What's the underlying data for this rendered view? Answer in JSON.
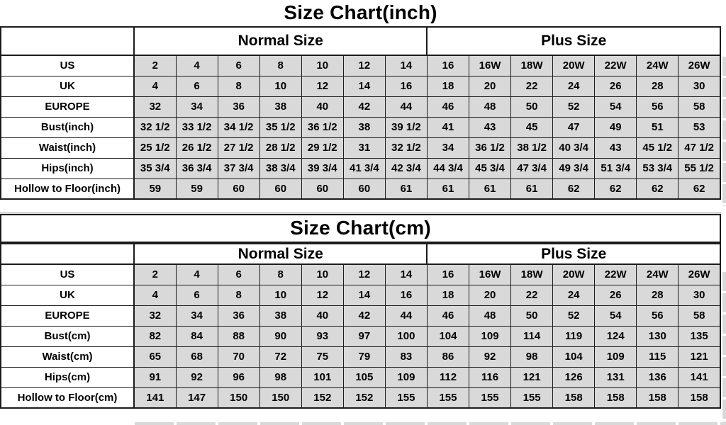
{
  "colors": {
    "cell_background": "#d9d9d9",
    "border": "#1c1c1c",
    "text": "#000000",
    "page_background": "#ffffff"
  },
  "chart_data": [
    {
      "type": "table",
      "title": "Size Chart(inch)",
      "column_groups": [
        {
          "label": "Normal Size",
          "span": 7
        },
        {
          "label": "Plus Size",
          "span": 7
        }
      ],
      "rows": [
        {
          "label": "US",
          "values": [
            "2",
            "4",
            "6",
            "8",
            "10",
            "12",
            "14",
            "16",
            "16W",
            "18W",
            "20W",
            "22W",
            "24W",
            "26W"
          ]
        },
        {
          "label": "UK",
          "values": [
            "4",
            "6",
            "8",
            "10",
            "12",
            "14",
            "16",
            "18",
            "20",
            "22",
            "24",
            "26",
            "28",
            "30"
          ]
        },
        {
          "label": "EUROPE",
          "values": [
            "32",
            "34",
            "36",
            "38",
            "40",
            "42",
            "44",
            "46",
            "48",
            "50",
            "52",
            "54",
            "56",
            "58"
          ]
        },
        {
          "label": "Bust(inch)",
          "values": [
            "32 1/2",
            "33 1/2",
            "34 1/2",
            "35 1/2",
            "36 1/2",
            "38",
            "39 1/2",
            "41",
            "43",
            "45",
            "47",
            "49",
            "51",
            "53"
          ]
        },
        {
          "label": "Waist(inch)",
          "values": [
            "25 1/2",
            "26 1/2",
            "27 1/2",
            "28 1/2",
            "29 1/2",
            "31",
            "32 1/2",
            "34",
            "36 1/2",
            "38 1/2",
            "40 3/4",
            "43",
            "45 1/2",
            "47 1/2"
          ]
        },
        {
          "label": "Hips(inch)",
          "values": [
            "35 3/4",
            "36 3/4",
            "37 3/4",
            "38 3/4",
            "39 3/4",
            "41 3/4",
            "42 3/4",
            "44 3/4",
            "45 3/4",
            "47 3/4",
            "49 3/4",
            "51 3/4",
            "53 3/4",
            "55 1/2"
          ]
        },
        {
          "label": "Hollow to Floor(inch)",
          "values": [
            "59",
            "59",
            "60",
            "60",
            "60",
            "60",
            "61",
            "61",
            "61",
            "61",
            "62",
            "62",
            "62",
            "62"
          ]
        }
      ]
    },
    {
      "type": "table",
      "title": "Size Chart(cm)",
      "column_groups": [
        {
          "label": "Normal Size",
          "span": 7
        },
        {
          "label": "Plus Size",
          "span": 7
        }
      ],
      "rows": [
        {
          "label": "US",
          "values": [
            "2",
            "4",
            "6",
            "8",
            "10",
            "12",
            "14",
            "16",
            "16W",
            "18W",
            "20W",
            "22W",
            "24W",
            "26W"
          ]
        },
        {
          "label": "UK",
          "values": [
            "4",
            "6",
            "8",
            "10",
            "12",
            "14",
            "16",
            "18",
            "20",
            "22",
            "24",
            "26",
            "28",
            "30"
          ]
        },
        {
          "label": "EUROPE",
          "values": [
            "32",
            "34",
            "36",
            "38",
            "40",
            "42",
            "44",
            "46",
            "48",
            "50",
            "52",
            "54",
            "56",
            "58"
          ]
        },
        {
          "label": "Bust(cm)",
          "values": [
            "82",
            "84",
            "88",
            "90",
            "93",
            "97",
            "100",
            "104",
            "109",
            "114",
            "119",
            "124",
            "130",
            "135"
          ]
        },
        {
          "label": "Waist(cm)",
          "values": [
            "65",
            "68",
            "70",
            "72",
            "75",
            "79",
            "83",
            "86",
            "92",
            "98",
            "104",
            "109",
            "115",
            "121"
          ]
        },
        {
          "label": "Hips(cm)",
          "values": [
            "91",
            "92",
            "96",
            "98",
            "101",
            "105",
            "109",
            "112",
            "116",
            "121",
            "126",
            "131",
            "136",
            "141"
          ]
        },
        {
          "label": "Hollow to Floor(cm)",
          "values": [
            "141",
            "147",
            "150",
            "150",
            "152",
            "152",
            "155",
            "155",
            "155",
            "155",
            "158",
            "158",
            "158",
            "158"
          ]
        }
      ]
    }
  ]
}
